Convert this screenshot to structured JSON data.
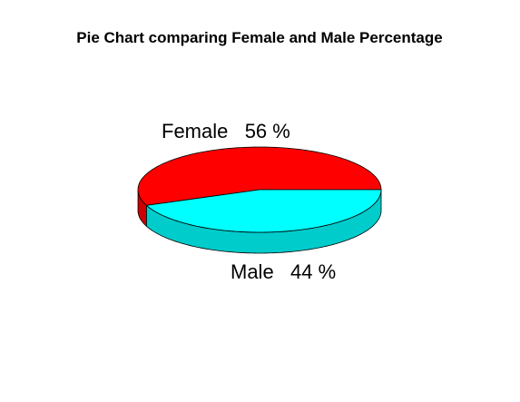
{
  "chart_data": {
    "type": "pie",
    "subtype": "3d",
    "title": "Pie Chart comparing Female and Male Percentage",
    "slices": [
      {
        "label": "Female",
        "value": 56,
        "unit": "%",
        "display": "Female   56 %",
        "top_color": "#ff0000",
        "side_color": "#cc0000"
      },
      {
        "label": "Male",
        "value": 44,
        "unit": "%",
        "display": "Male   44 %",
        "top_color": "#00ffff",
        "side_color": "#00cccc"
      }
    ]
  }
}
